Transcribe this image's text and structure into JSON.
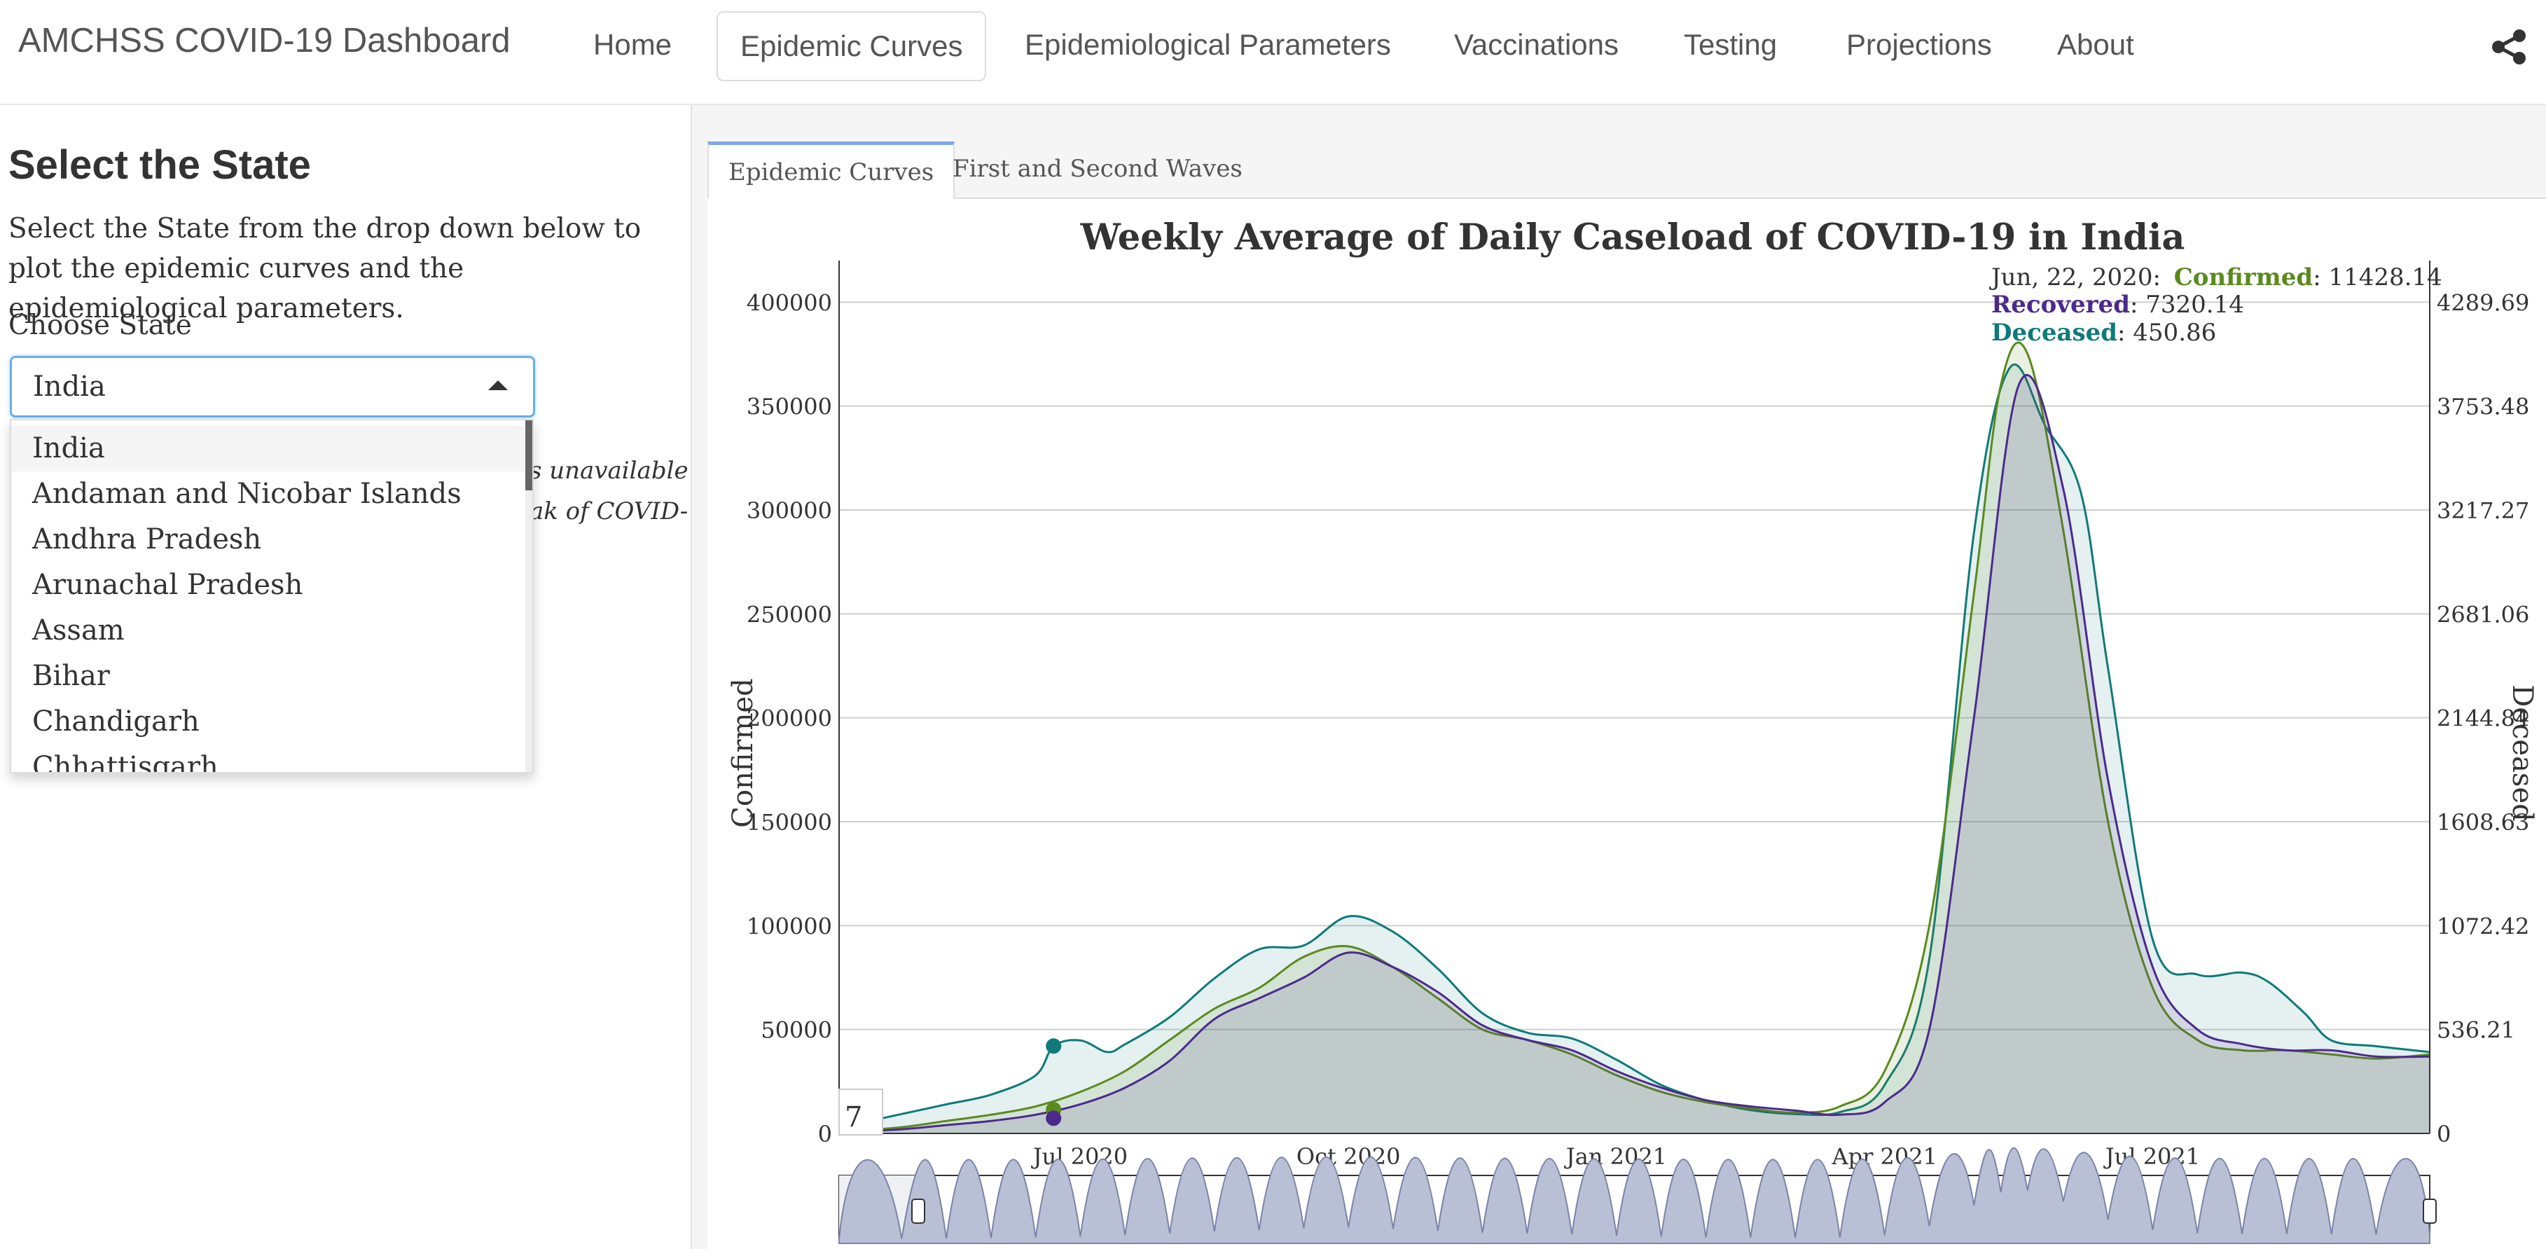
{
  "app": {
    "title": "AMCHSS COVID-19 Dashboard"
  },
  "nav": [
    {
      "label": "Home",
      "active": false
    },
    {
      "label": "Epidemic Curves",
      "active": true
    },
    {
      "label": "Epidemiological Parameters",
      "active": false
    },
    {
      "label": "Vaccinations",
      "active": false
    },
    {
      "label": "Testing",
      "active": false
    },
    {
      "label": "Projections",
      "active": false
    },
    {
      "label": "About",
      "active": false
    }
  ],
  "sidebar": {
    "title": "Select the State",
    "description": "Select the State from the drop down below to plot the epidemic curves and the epidemiological parameters.",
    "choose_label": "Choose State",
    "selected": "India",
    "options": [
      "India",
      "Andaman and Nicobar Islands",
      "Andhra Pradesh",
      "Arunachal Pradesh",
      "Assam",
      "Bihar",
      "Chandigarh",
      "Chhattisgarh"
    ],
    "note_line1": "s unavailable",
    "note_line2": "ak of COVID-"
  },
  "tabs": [
    {
      "label": "Epidemic Curves",
      "active": true
    },
    {
      "label": "First and Second Waves",
      "active": false
    }
  ],
  "chart_data": {
    "type": "area",
    "title": "Weekly Average of Daily Caseload of COVID-19 in India",
    "ylabel": "Confirmed",
    "y2label": "Deceased",
    "ylim": [
      0,
      420000
    ],
    "y2lim": [
      0,
      4504
    ],
    "y_ticks": [
      0,
      50000,
      100000,
      150000,
      200000,
      250000,
      300000,
      350000,
      400000
    ],
    "y2_ticks": [
      "0",
      "536.21",
      "1072.42",
      "1608.63",
      "2144.84",
      "2681.06",
      "3217.27",
      "3753.48",
      "4289.69"
    ],
    "x_ticks": [
      "Jul 2020",
      "Oct 2020",
      "Jan 2021",
      "Apr 2021",
      "Jul 2021"
    ],
    "x_tick_months": [
      4,
      7,
      10,
      13,
      16
    ],
    "x_range": [
      1.3,
      19.1
    ],
    "roll_period": "7",
    "colors": {
      "confirmed": "#5a8a1e",
      "recovered": "#4b2a8c",
      "deceased": "#0f7a7a"
    },
    "tooltip": {
      "date": "Jun, 22, 2020:",
      "confirmed_label": "Confirmed",
      "confirmed_value": ": 11428.14",
      "recovered_label": "Recovered",
      "recovered_value": ": 7320.14",
      "deceased_label": "Deceased",
      "deceased_value": ": 450.86"
    },
    "highlight_x": 3.7,
    "series": [
      {
        "name": "Confirmed",
        "axis": "left",
        "x": [
          1.3,
          2,
          2.5,
          3,
          3.5,
          4,
          4.5,
          5,
          5.5,
          6,
          6.5,
          7,
          7.5,
          8,
          8.5,
          9,
          9.5,
          10,
          10.5,
          11,
          11.5,
          12,
          12.5,
          13,
          13.5,
          14,
          14.3,
          14.6,
          15,
          15.5,
          16,
          16.5,
          17,
          17.5,
          18,
          18.5,
          19.1
        ],
        "y": [
          500,
          3000,
          6000,
          9000,
          13000,
          20000,
          30000,
          45000,
          60000,
          70000,
          85000,
          90000,
          80000,
          65000,
          50000,
          45000,
          38000,
          28000,
          20000,
          15000,
          12000,
          10000,
          13000,
          30000,
          100000,
          260000,
          360000,
          375000,
          290000,
          150000,
          70000,
          45000,
          40000,
          40000,
          38000,
          36000,
          38000
        ]
      },
      {
        "name": "Recovered",
        "axis": "left",
        "x": [
          1.3,
          2,
          2.5,
          3,
          3.5,
          4,
          4.5,
          5,
          5.5,
          6,
          6.5,
          7,
          7.5,
          8,
          8.5,
          9,
          9.5,
          10,
          10.5,
          11,
          11.5,
          12,
          12.5,
          13,
          13.5,
          14,
          14.5,
          15,
          15.5,
          16,
          16.5,
          17,
          17.5,
          18,
          18.5,
          19.1
        ],
        "y": [
          300,
          2000,
          4000,
          6000,
          9000,
          14000,
          22000,
          35000,
          55000,
          65000,
          75000,
          87000,
          80000,
          68000,
          52000,
          45000,
          40000,
          30000,
          22000,
          16000,
          13000,
          11000,
          9000,
          15000,
          50000,
          200000,
          360000,
          310000,
          170000,
          80000,
          50000,
          43000,
          40000,
          40000,
          37000,
          37000
        ]
      },
      {
        "name": "Deceased",
        "axis": "right",
        "x": [
          1.3,
          2,
          2.5,
          3,
          3.5,
          3.7,
          4,
          4.3,
          4.5,
          5,
          5.5,
          6,
          6.5,
          7,
          7.5,
          8,
          8.5,
          9,
          9.5,
          10,
          10.5,
          11,
          11.5,
          12,
          12.5,
          13,
          13.5,
          14,
          14.4,
          14.8,
          15.2,
          15.5,
          16,
          16.5,
          17,
          17.3,
          17.7,
          18,
          18.5,
          19.1
        ],
        "y": [
          30,
          100,
          150,
          200,
          300,
          450,
          480,
          420,
          460,
          600,
          800,
          950,
          970,
          1120,
          1040,
          850,
          620,
          520,
          490,
          380,
          250,
          170,
          120,
          100,
          110,
          250,
          900,
          3100,
          3950,
          3650,
          3300,
          2400,
          1000,
          820,
          830,
          780,
          620,
          480,
          450,
          420
        ]
      }
    ]
  }
}
